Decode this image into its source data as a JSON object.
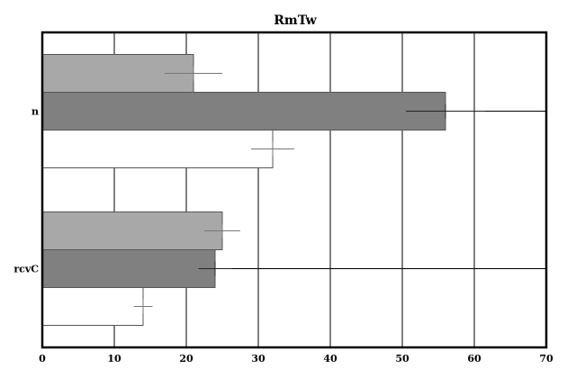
{
  "chart_data": {
    "type": "bar",
    "orientation": "horizontal",
    "title": "RmTw",
    "xlabel": "",
    "ylabel": "",
    "xlim": [
      0,
      70
    ],
    "x_ticks": [
      0,
      10,
      20,
      30,
      40,
      50,
      60,
      70
    ],
    "grid": "vertical",
    "legend": "none",
    "categories": [
      "n",
      "rcvC"
    ],
    "series": [
      {
        "color": "#a8a8a8",
        "values": [
          21,
          25
        ],
        "errors": [
          4,
          2.5
        ]
      },
      {
        "color": "#808080",
        "values": [
          56,
          24
        ],
        "errors": [
          5.5,
          2.3
        ]
      },
      {
        "color": "#ffffff",
        "values": [
          32,
          14
        ],
        "errors": [
          3,
          1.3
        ]
      }
    ]
  }
}
